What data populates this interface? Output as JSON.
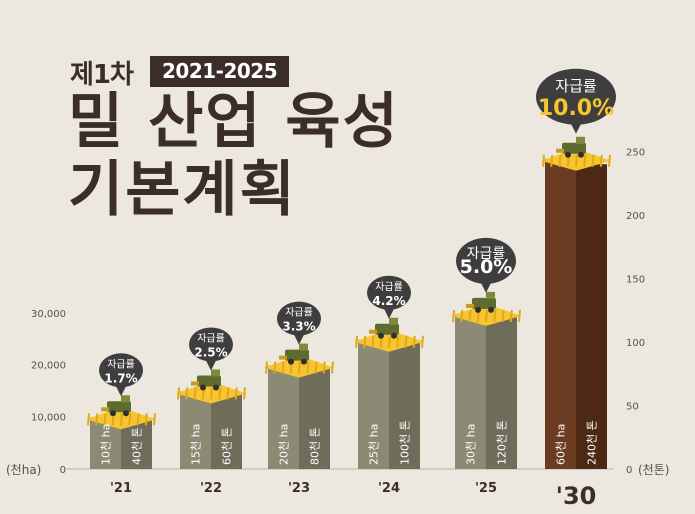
{
  "header": {
    "plan_number": "제1차",
    "years": "2021-2025",
    "title_line1": "밀 산업 육성",
    "title_line2": "기본계획"
  },
  "colors": {
    "background": "#ece8df",
    "title_text": "#3b2e28",
    "bar_front": "#8c8a75",
    "bar_side": "#6f6d5a",
    "bar_2030_front": "#6b3b22",
    "bar_2030_side": "#4d2815",
    "wheat_top": "#f6c530",
    "bubble": "#3e3e3e",
    "bubble_value_2030": "#f6c530"
  },
  "chart_data": {
    "type": "bar",
    "categories": [
      "'21",
      "'22",
      "'23",
      "'24",
      "'25",
      "'30"
    ],
    "series": [
      {
        "values": [
          10000,
          15000,
          20000,
          25000,
          30000,
          60000
        ],
        "labels": [
          "10천 ha",
          "15천 ha",
          "20천 ha",
          "25천 ha",
          "30천 ha",
          "60천 ha"
        ],
        "axis": "left"
      },
      {
        "values": [
          40,
          60,
          80,
          100,
          120,
          240
        ],
        "labels": [
          "40천 톤",
          "60천 톤",
          "80천 톤",
          "100천 톤",
          "120천 톤",
          "240천 톤"
        ],
        "axis": "right"
      }
    ],
    "self_sufficiency": {
      "label": "자급률",
      "values": [
        "1.7%",
        "2.5%",
        "3.3%",
        "4.2%",
        "5.0%",
        "10.0%"
      ]
    },
    "y_left": {
      "ticks": [
        0,
        10000,
        20000,
        30000
      ],
      "tick_labels": [
        "0",
        "10,000",
        "20,000",
        "30,000"
      ],
      "unit": "(천ha)",
      "range": [
        0,
        60000
      ]
    },
    "y_right": {
      "ticks": [
        0,
        50,
        100,
        150,
        200,
        250
      ],
      "tick_labels": [
        "0",
        "50",
        "100",
        "150",
        "200",
        "250"
      ],
      "unit": "(천톤)",
      "range": [
        0,
        250
      ]
    },
    "grid": false
  }
}
